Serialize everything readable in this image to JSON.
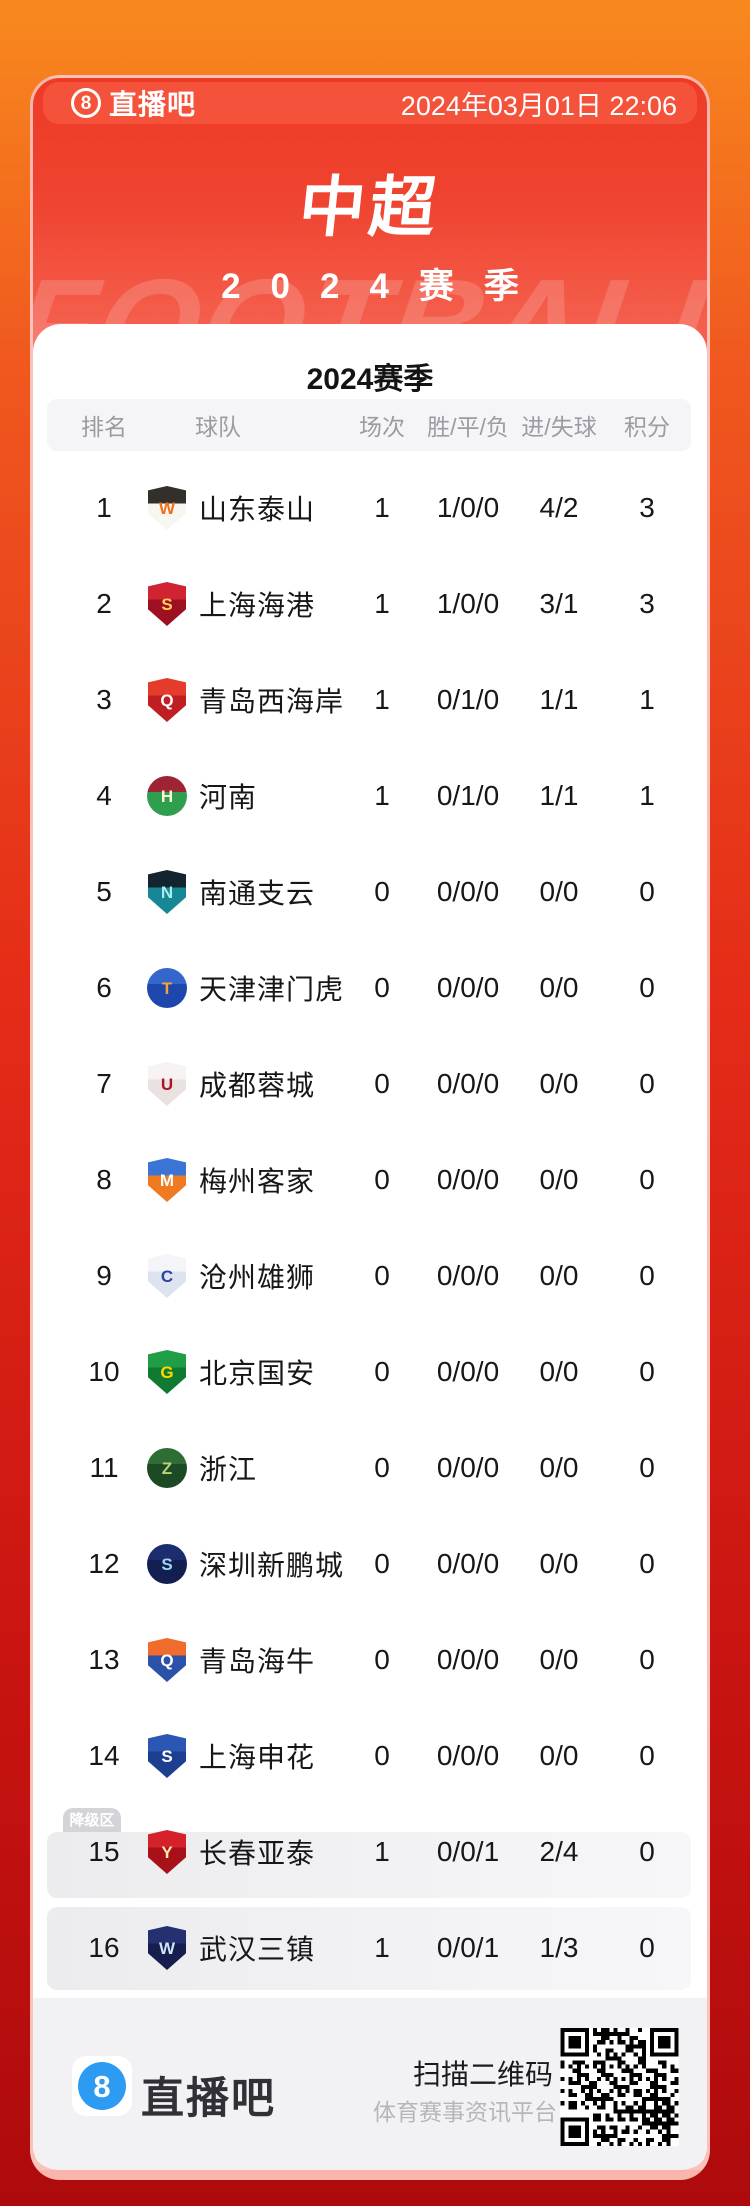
{
  "page": {
    "brand": "直播吧",
    "brand_number": "8",
    "date": "2024年03月01日 22:06",
    "title": "中超",
    "subtitle": "2024赛季",
    "watermark": "FOOTBALL"
  },
  "table": {
    "season_title": "2024赛季",
    "columns": [
      "排名",
      "球队",
      "场次",
      "胜/平/负",
      "进/失球",
      "积分"
    ],
    "relegation_label": "降级区",
    "rows": [
      {
        "rank": 1,
        "team": "山东泰山",
        "played": "1",
        "wdl": "1/0/0",
        "goals": "4/2",
        "points": "3",
        "relegation": false,
        "logo": {
          "shape": "shield",
          "c1": "#33302c",
          "c2": "#f8f6f0",
          "tc": "#f2701b",
          "ch": "W"
        }
      },
      {
        "rank": 2,
        "team": "上海海港",
        "played": "1",
        "wdl": "1/0/0",
        "goals": "3/1",
        "points": "3",
        "relegation": false,
        "logo": {
          "shape": "shield",
          "c1": "#d12433",
          "c2": "#9e1021",
          "tc": "#ffd257",
          "ch": "S"
        }
      },
      {
        "rank": 3,
        "team": "青岛西海岸",
        "played": "1",
        "wdl": "0/1/0",
        "goals": "1/1",
        "points": "1",
        "relegation": false,
        "logo": {
          "shape": "shield",
          "c1": "#e43b2a",
          "c2": "#bf1f22",
          "tc": "#ffffff",
          "ch": "Q"
        }
      },
      {
        "rank": 4,
        "team": "河南",
        "played": "1",
        "wdl": "0/1/0",
        "goals": "1/1",
        "points": "1",
        "relegation": false,
        "logo": {
          "shape": "circle",
          "c1": "#9e2434",
          "c2": "#2f9e4f",
          "tc": "#fdf4d8",
          "ch": "H"
        }
      },
      {
        "rank": 5,
        "team": "南通支云",
        "played": "0",
        "wdl": "0/0/0",
        "goals": "0/0",
        "points": "0",
        "relegation": false,
        "logo": {
          "shape": "shield",
          "c1": "#13242f",
          "c2": "#178695",
          "tc": "#aaebf2",
          "ch": "N"
        }
      },
      {
        "rank": 6,
        "team": "天津津门虎",
        "played": "0",
        "wdl": "0/0/0",
        "goals": "0/0",
        "points": "0",
        "relegation": false,
        "logo": {
          "shape": "circle",
          "c1": "#3566cc",
          "c2": "#1e47ad",
          "tc": "#f4a436",
          "ch": "T"
        }
      },
      {
        "rank": 7,
        "team": "成都蓉城",
        "played": "0",
        "wdl": "0/0/0",
        "goals": "0/0",
        "points": "0",
        "relegation": false,
        "logo": {
          "shape": "shield",
          "c1": "#f7f3f2",
          "c2": "#e9e2e1",
          "tc": "#b01229",
          "ch": "U"
        }
      },
      {
        "rank": 8,
        "team": "梅州客家",
        "played": "0",
        "wdl": "0/0/0",
        "goals": "0/0",
        "points": "0",
        "relegation": false,
        "logo": {
          "shape": "shield",
          "c1": "#3a74d4",
          "c2": "#ef7a20",
          "tc": "#ffffff",
          "ch": "M"
        }
      },
      {
        "rank": 9,
        "team": "沧州雄狮",
        "played": "0",
        "wdl": "0/0/0",
        "goals": "0/0",
        "points": "0",
        "relegation": false,
        "logo": {
          "shape": "shield",
          "c1": "#f3f5f9",
          "c2": "#dde4f0",
          "tc": "#2a44a0",
          "ch": "C"
        }
      },
      {
        "rank": 10,
        "team": "北京国安",
        "played": "0",
        "wdl": "0/0/0",
        "goals": "0/0",
        "points": "0",
        "relegation": false,
        "logo": {
          "shape": "shield",
          "c1": "#1f9e45",
          "c2": "#107a31",
          "tc": "#ffd900",
          "ch": "G"
        }
      },
      {
        "rank": 11,
        "team": "浙江",
        "played": "0",
        "wdl": "0/0/0",
        "goals": "0/0",
        "points": "0",
        "relegation": false,
        "logo": {
          "shape": "circle",
          "c1": "#2e6e35",
          "c2": "#1c4a24",
          "tc": "#bcd077",
          "ch": "Z"
        }
      },
      {
        "rank": 12,
        "team": "深圳新鹏城",
        "played": "0",
        "wdl": "0/0/0",
        "goals": "0/0",
        "points": "0",
        "relegation": false,
        "logo": {
          "shape": "circle",
          "c1": "#1b2d6e",
          "c2": "#121f50",
          "tc": "#9fd8f2",
          "ch": "S"
        }
      },
      {
        "rank": 13,
        "team": "青岛海牛",
        "played": "0",
        "wdl": "0/0/0",
        "goals": "0/0",
        "points": "0",
        "relegation": false,
        "logo": {
          "shape": "shield",
          "c1": "#ef6c2d",
          "c2": "#2b51a8",
          "tc": "#ffffff",
          "ch": "Q"
        }
      },
      {
        "rank": 14,
        "team": "上海申花",
        "played": "0",
        "wdl": "0/0/0",
        "goals": "0/0",
        "points": "0",
        "relegation": false,
        "logo": {
          "shape": "shield",
          "c1": "#2b57b4",
          "c2": "#1c3f92",
          "tc": "#ffffff",
          "ch": "S"
        }
      },
      {
        "rank": 15,
        "team": "长春亚泰",
        "played": "1",
        "wdl": "0/0/1",
        "goals": "2/4",
        "points": "0",
        "relegation": true,
        "logo": {
          "shape": "shield",
          "c1": "#d52129",
          "c2": "#a9111a",
          "tc": "#ffe9b0",
          "ch": "Y"
        }
      },
      {
        "rank": 16,
        "team": "武汉三镇",
        "played": "1",
        "wdl": "0/0/1",
        "goals": "1/3",
        "points": "0",
        "relegation": true,
        "logo": {
          "shape": "shield",
          "c1": "#243070",
          "c2": "#151e4d",
          "tc": "#cfe4f8",
          "ch": "W"
        }
      }
    ]
  },
  "footer": {
    "brand": "直播吧",
    "brand_number": "8",
    "scan_label": "扫描二维码",
    "tagline": "体育赛事资讯平台"
  },
  "colors": {
    "bg_top_orange": "#f8891e",
    "bg_bottom_red": "#ae0a0c",
    "card_red": "#ee3b26",
    "topbar_red": "#f5523b",
    "panel_white": "#ffffff",
    "header_band_gray": "#f5f5f7",
    "footer_gray": "#f2f2f4",
    "relegation_block_gray": "#ececef",
    "badge_gray": "#d3d3d8",
    "text_dark": "#17171a",
    "text_gray": "#9b9ba3",
    "footer_logo_blue": "#2e9bf3"
  }
}
